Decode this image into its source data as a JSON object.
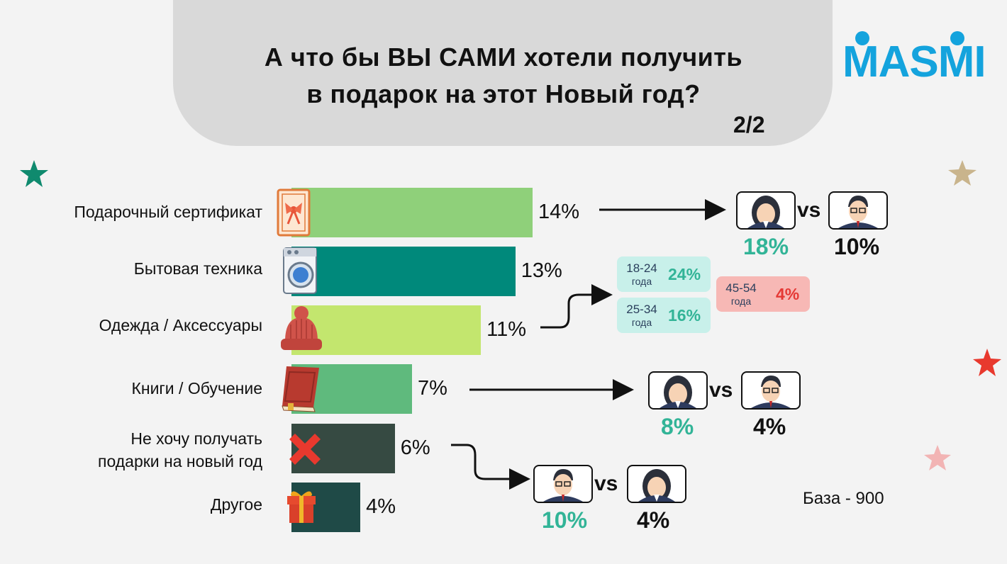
{
  "header": {
    "title_line1": "А что бы ВЫ САМИ хотели получить",
    "title_line2": "в подарок на этот Новый год?",
    "page": "2/2"
  },
  "logo": {
    "text": "MASMI",
    "color": "#14a3dd"
  },
  "chart_data": {
    "type": "bar",
    "orientation": "horizontal",
    "categories": [
      "Подарочный сертификат",
      "Бытовая техника",
      "Одежда / Аксессуары",
      "Книги / Обучение",
      "Не хочу получать подарки на новый год",
      "Другое"
    ],
    "label_lines": [
      [
        "Подарочный сертификат"
      ],
      [
        "Бытовая техника"
      ],
      [
        "Одежда / Аксессуары"
      ],
      [
        "Книги / Обучение"
      ],
      [
        "Не хочу получать",
        "подарки на новый год"
      ],
      [
        "Другое"
      ]
    ],
    "values": [
      14,
      13,
      11,
      7,
      6,
      4
    ],
    "value_labels": [
      "14%",
      "13%",
      "11%",
      "7%",
      "6%",
      "4%"
    ],
    "unit": "%",
    "xlim": [
      0,
      14
    ],
    "bar_colors": [
      "#8fd07a",
      "#00897b",
      "#c3e66e",
      "#5fba7d",
      "#364a42",
      "#1f4a47"
    ],
    "icons": [
      "gift-certificate-icon",
      "washing-machine-icon",
      "knit-hat-icon",
      "book-icon",
      "red-x-icon",
      "gift-box-icon"
    ],
    "grid": false,
    "legend": "none"
  },
  "comparisons": [
    {
      "category": "Подарочный сертификат",
      "first": "female",
      "second": "male",
      "first_value": "18%",
      "second_value": "10%",
      "vs": "vs"
    },
    {
      "category": "Книги / Обучение",
      "first": "female",
      "second": "male",
      "first_value": "8%",
      "second_value": "4%",
      "vs": "vs"
    },
    {
      "category": "Не хочу получать подарки на новый год",
      "first": "male",
      "second": "female",
      "first_value": "10%",
      "second_value": "4%",
      "vs": "vs"
    }
  ],
  "age_breakdown": {
    "category": "Одежда / Аксессуары",
    "items": [
      {
        "age": "18-24",
        "unit": "года",
        "value": "24%",
        "color": "#c8f0ea",
        "value_color": "#32b497"
      },
      {
        "age": "25-34",
        "unit": "года",
        "value": "16%",
        "color": "#c8f0ea",
        "value_color": "#32b497"
      },
      {
        "age": "45-54",
        "unit": "года",
        "value": "4%",
        "color": "#f7b8b5",
        "value_color": "#e53935"
      }
    ]
  },
  "base": "База - 900",
  "colors": {
    "accent_teal": "#32b497",
    "header_bg": "#d9d9d9",
    "negative": "#e53935"
  }
}
